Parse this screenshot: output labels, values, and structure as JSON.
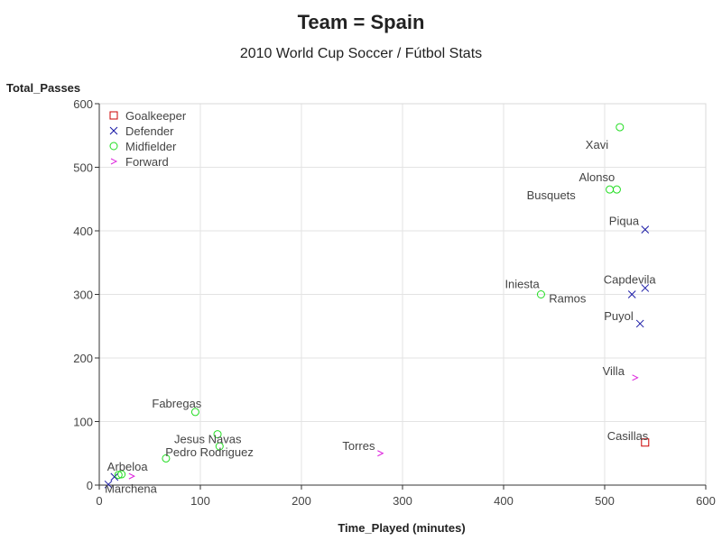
{
  "chart_data": {
    "type": "scatter",
    "title": "Team = Spain",
    "subtitle": "2010 World Cup Soccer / Fútbol Stats",
    "xlabel": "Time_Played (minutes)",
    "ylabel": "Total_Passes",
    "xlim": [
      0,
      600
    ],
    "ylim": [
      0,
      600
    ],
    "xticks": [
      0,
      100,
      200,
      300,
      400,
      500,
      600
    ],
    "yticks": [
      0,
      100,
      200,
      300,
      400,
      500,
      600
    ],
    "grid": true,
    "legend_position": "top-left",
    "series": [
      {
        "name": "Goalkeeper",
        "marker": "square",
        "color": "#cc0000",
        "points": [
          {
            "label": "Casillas",
            "x": 540,
            "y": 67
          }
        ]
      },
      {
        "name": "Defender",
        "marker": "x",
        "color": "#1a1aa6",
        "points": [
          {
            "label": "Piqua",
            "x": 540,
            "y": 402
          },
          {
            "label": "Capdevila",
            "x": 540,
            "y": 310
          },
          {
            "label": "Ramos",
            "x": 527,
            "y": 300
          },
          {
            "label": "Puyol",
            "x": 535,
            "y": 254
          },
          {
            "label": "Arbeloa",
            "x": 15,
            "y": 13
          },
          {
            "label": "Marchena",
            "x": 9,
            "y": 1
          }
        ]
      },
      {
        "name": "Midfielder",
        "marker": "circle",
        "color": "#22dd22",
        "points": [
          {
            "label": "Xavi",
            "x": 515,
            "y": 563
          },
          {
            "label": "Alonso",
            "x": 512,
            "y": 465
          },
          {
            "label": "Busquets",
            "x": 505,
            "y": 465
          },
          {
            "label": "Iniesta",
            "x": 437,
            "y": 300
          },
          {
            "label": "Fabregas",
            "x": 95,
            "y": 115
          },
          {
            "label": "Jesus Navas",
            "x": 117,
            "y": 80
          },
          {
            "label": "Pedro Rodriguez",
            "x": 119,
            "y": 61
          },
          {
            "label": "",
            "x": 66,
            "y": 42
          },
          {
            "label": "",
            "x": 22,
            "y": 17
          },
          {
            "label": "",
            "x": 19,
            "y": 16
          }
        ]
      },
      {
        "name": "Forward",
        "marker": "chevron",
        "color": "#dd22dd",
        "points": [
          {
            "label": "Villa",
            "x": 530,
            "y": 169
          },
          {
            "label": "Torres",
            "x": 278,
            "y": 50
          },
          {
            "label": "",
            "x": 32,
            "y": 14
          }
        ]
      }
    ]
  },
  "colors": {
    "grid": "#e3e3e3",
    "frame": "#d9d9d9",
    "text": "#444444"
  }
}
